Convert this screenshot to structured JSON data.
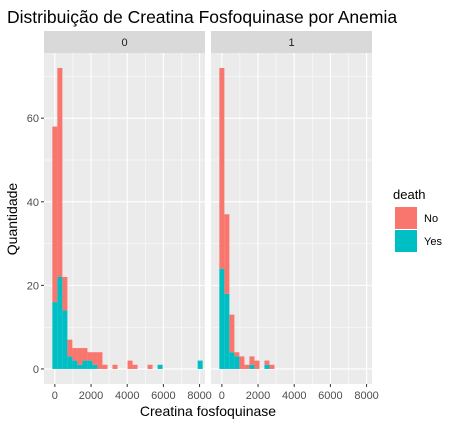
{
  "chart_data": {
    "type": "histogram",
    "title": "Distribuição de Creatina Fosfoquinase por Anemia",
    "xlabel": "Creatina fosfoquinase",
    "ylabel": "Quantidade",
    "facet_variable": "anaemia",
    "x_ticks": [
      0,
      2000,
      4000,
      6000,
      8000
    ],
    "y_ticks": [
      0,
      20,
      40,
      60
    ],
    "xlim": [
      -600,
      8300
    ],
    "ylim": [
      -3.6,
      75.6
    ],
    "bin_width": 277,
    "stacked": true,
    "grid": true,
    "legend_position": "right",
    "legend": {
      "title": "death",
      "entries": [
        {
          "label": "No",
          "color": "#F8766D"
        },
        {
          "label": "Yes",
          "color": "#00BFC4"
        }
      ]
    },
    "panels": [
      {
        "label": "0",
        "bins": [
          {
            "x0": -138,
            "x1": 139,
            "no": 42,
            "yes": 16
          },
          {
            "x0": 139,
            "x1": 416,
            "no": 50,
            "yes": 22
          },
          {
            "x0": 416,
            "x1": 693,
            "no": 8,
            "yes": 14
          },
          {
            "x0": 693,
            "x1": 970,
            "no": 4,
            "yes": 3
          },
          {
            "x0": 970,
            "x1": 1247,
            "no": 3,
            "yes": 2
          },
          {
            "x0": 1247,
            "x1": 1524,
            "no": 4,
            "yes": 1
          },
          {
            "x0": 1524,
            "x1": 1801,
            "no": 3,
            "yes": 2
          },
          {
            "x0": 1801,
            "x1": 2078,
            "no": 2,
            "yes": 2
          },
          {
            "x0": 2078,
            "x1": 2355,
            "no": 3,
            "yes": 1
          },
          {
            "x0": 2355,
            "x1": 2632,
            "no": 4,
            "yes": 0
          },
          {
            "x0": 2632,
            "x1": 2909,
            "no": 1,
            "yes": 0
          },
          {
            "x0": 3186,
            "x1": 3463,
            "no": 1,
            "yes": 0
          },
          {
            "x0": 4017,
            "x1": 4294,
            "no": 2,
            "yes": 0
          },
          {
            "x0": 4294,
            "x1": 4571,
            "no": 1,
            "yes": 0
          },
          {
            "x0": 5125,
            "x1": 5402,
            "no": 1,
            "yes": 0
          },
          {
            "x0": 5679,
            "x1": 5956,
            "no": 0,
            "yes": 1
          },
          {
            "x0": 7895,
            "x1": 8172,
            "no": 0,
            "yes": 2
          }
        ]
      },
      {
        "label": "1",
        "bins": [
          {
            "x0": -138,
            "x1": 139,
            "no": 48,
            "yes": 24
          },
          {
            "x0": 139,
            "x1": 416,
            "no": 19,
            "yes": 18
          },
          {
            "x0": 416,
            "x1": 693,
            "no": 9,
            "yes": 4
          },
          {
            "x0": 693,
            "x1": 970,
            "no": 1,
            "yes": 3
          },
          {
            "x0": 970,
            "x1": 1247,
            "no": 3,
            "yes": 0
          },
          {
            "x0": 1247,
            "x1": 1524,
            "no": 1,
            "yes": 0
          },
          {
            "x0": 1524,
            "x1": 1801,
            "no": 2,
            "yes": 1
          },
          {
            "x0": 1801,
            "x1": 2078,
            "no": 2,
            "yes": 0
          },
          {
            "x0": 2355,
            "x1": 2632,
            "no": 1,
            "yes": 1
          },
          {
            "x0": 2632,
            "x1": 2909,
            "no": 1,
            "yes": 0
          }
        ]
      }
    ]
  }
}
